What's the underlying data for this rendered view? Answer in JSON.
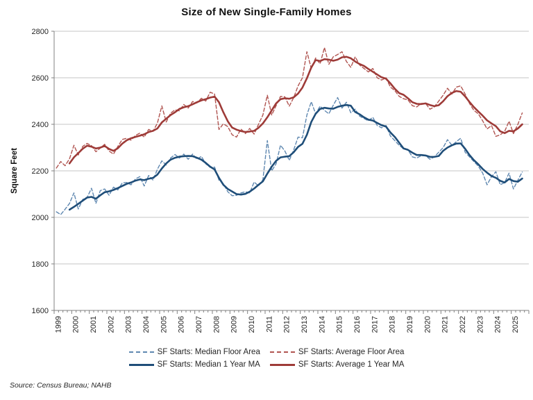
{
  "title": "Size of New Single-Family Homes",
  "source_note": "Source: Census Bureau; NAHB",
  "chart_data": {
    "type": "line",
    "title": "Size of New Single-Family Homes",
    "xlabel": "",
    "ylabel": "Square Feet",
    "ylim": [
      1600,
      2800
    ],
    "ytick_step": 200,
    "grid": "horizontal",
    "legend_position": "bottom",
    "frequency": "quarterly",
    "x_start_year": 1999,
    "x_end_year": 2025,
    "x_tick_labels": [
      "1999",
      "2000",
      "2001",
      "2002",
      "2003",
      "2004",
      "2005",
      "2006",
      "2007",
      "2008",
      "2009",
      "2010",
      "2011",
      "2012",
      "2013",
      "2014",
      "2015",
      "2016",
      "2017",
      "2018",
      "2019",
      "2020",
      "2021",
      "2022",
      "2023",
      "2024",
      "2025"
    ],
    "colors": {
      "median_dashed": "#5E87B0",
      "average_dashed": "#B05450",
      "median_solid": "#1F4E79",
      "average_solid": "#9E3B38",
      "gridline": "#C6C6C6",
      "axis": "#808080",
      "text": "#262626"
    },
    "series": [
      {
        "name": "SF Starts: Median Floor Area",
        "style": "dashed",
        "color": "#5E87B0",
        "values": [
          2024,
          2012,
          2035,
          2060,
          2105,
          2036,
          2077,
          2085,
          2125,
          2060,
          2115,
          2122,
          2095,
          2130,
          2118,
          2148,
          2150,
          2140,
          2165,
          2175,
          2135,
          2180,
          2160,
          2207,
          2243,
          2225,
          2255,
          2270,
          2255,
          2272,
          2250,
          2272,
          2250,
          2262,
          2230,
          2215,
          2216,
          2160,
          2145,
          2110,
          2093,
          2095,
          2105,
          2110,
          2105,
          2152,
          2135,
          2162,
          2330,
          2200,
          2230,
          2310,
          2285,
          2245,
          2290,
          2345,
          2342,
          2440,
          2497,
          2445,
          2478,
          2460,
          2445,
          2482,
          2515,
          2470,
          2495,
          2450,
          2465,
          2435,
          2425,
          2415,
          2430,
          2395,
          2385,
          2395,
          2350,
          2330,
          2310,
          2295,
          2290,
          2260,
          2255,
          2265,
          2265,
          2250,
          2260,
          2280,
          2300,
          2334,
          2310,
          2325,
          2340,
          2280,
          2260,
          2240,
          2220,
          2190,
          2140,
          2175,
          2196,
          2140,
          2150,
          2190,
          2122,
          2160,
          2195
        ]
      },
      {
        "name": "SF Starts: Average Floor Area",
        "style": "dashed",
        "color": "#B05450",
        "values": [
          2212,
          2240,
          2222,
          2252,
          2310,
          2268,
          2305,
          2318,
          2308,
          2282,
          2298,
          2314,
          2285,
          2272,
          2305,
          2335,
          2340,
          2332,
          2352,
          2362,
          2345,
          2378,
          2370,
          2405,
          2479,
          2410,
          2448,
          2462,
          2458,
          2485,
          2470,
          2498,
          2492,
          2512,
          2500,
          2538,
          2530,
          2378,
          2402,
          2390,
          2355,
          2345,
          2380,
          2360,
          2382,
          2358,
          2400,
          2440,
          2525,
          2440,
          2480,
          2520,
          2518,
          2478,
          2515,
          2565,
          2600,
          2712,
          2640,
          2685,
          2660,
          2730,
          2658,
          2690,
          2700,
          2712,
          2670,
          2645,
          2690,
          2655,
          2640,
          2625,
          2640,
          2600,
          2590,
          2600,
          2560,
          2545,
          2520,
          2510,
          2505,
          2480,
          2475,
          2490,
          2490,
          2465,
          2475,
          2500,
          2525,
          2555,
          2530,
          2560,
          2565,
          2530,
          2490,
          2460,
          2445,
          2415,
          2380,
          2395,
          2348,
          2355,
          2370,
          2413,
          2360,
          2400,
          2449
        ]
      },
      {
        "name": "SF Starts: Median 1 Year MA",
        "style": "solid",
        "color": "#1F4E79",
        "values": [
          null,
          null,
          null,
          2033,
          2045,
          2058,
          2072,
          2085,
          2088,
          2080,
          2095,
          2108,
          2112,
          2118,
          2126,
          2135,
          2144,
          2150,
          2158,
          2163,
          2160,
          2166,
          2170,
          2184,
          2210,
          2232,
          2248,
          2256,
          2261,
          2263,
          2264,
          2263,
          2256,
          2248,
          2234,
          2218,
          2206,
          2170,
          2140,
          2122,
          2111,
          2100,
          2098,
          2101,
          2110,
          2124,
          2140,
          2155,
          2188,
          2218,
          2243,
          2258,
          2261,
          2263,
          2280,
          2303,
          2316,
          2355,
          2410,
          2445,
          2466,
          2471,
          2468,
          2467,
          2475,
          2480,
          2483,
          2480,
          2453,
          2443,
          2430,
          2420,
          2416,
          2406,
          2396,
          2390,
          2365,
          2346,
          2321,
          2296,
          2290,
          2278,
          2268,
          2268,
          2266,
          2260,
          2260,
          2264,
          2286,
          2300,
          2310,
          2317,
          2318,
          2295,
          2268,
          2246,
          2228,
          2208,
          2192,
          2178,
          2170,
          2157,
          2150,
          2165,
          2156,
          2153,
          2167
        ]
      },
      {
        "name": "SF Starts: Average 1 Year MA",
        "style": "solid",
        "color": "#9E3B38",
        "values": [
          null,
          null,
          null,
          2232,
          2258,
          2276,
          2295,
          2308,
          2304,
          2296,
          2300,
          2307,
          2294,
          2286,
          2297,
          2317,
          2331,
          2340,
          2346,
          2351,
          2357,
          2367,
          2372,
          2382,
          2408,
          2424,
          2440,
          2452,
          2466,
          2473,
          2478,
          2486,
          2495,
          2503,
          2508,
          2515,
          2519,
          2495,
          2452,
          2413,
          2386,
          2377,
          2371,
          2367,
          2369,
          2372,
          2385,
          2404,
          2430,
          2460,
          2490,
          2508,
          2512,
          2510,
          2516,
          2532,
          2558,
          2598,
          2644,
          2676,
          2672,
          2680,
          2678,
          2673,
          2678,
          2688,
          2690,
          2684,
          2670,
          2659,
          2651,
          2638,
          2626,
          2614,
          2602,
          2596,
          2576,
          2553,
          2534,
          2527,
          2512,
          2495,
          2488,
          2487,
          2490,
          2483,
          2478,
          2482,
          2499,
          2521,
          2535,
          2543,
          2540,
          2520,
          2496,
          2474,
          2455,
          2437,
          2417,
          2404,
          2392,
          2370,
          2362,
          2372,
          2370,
          2382,
          2400
        ]
      }
    ]
  }
}
